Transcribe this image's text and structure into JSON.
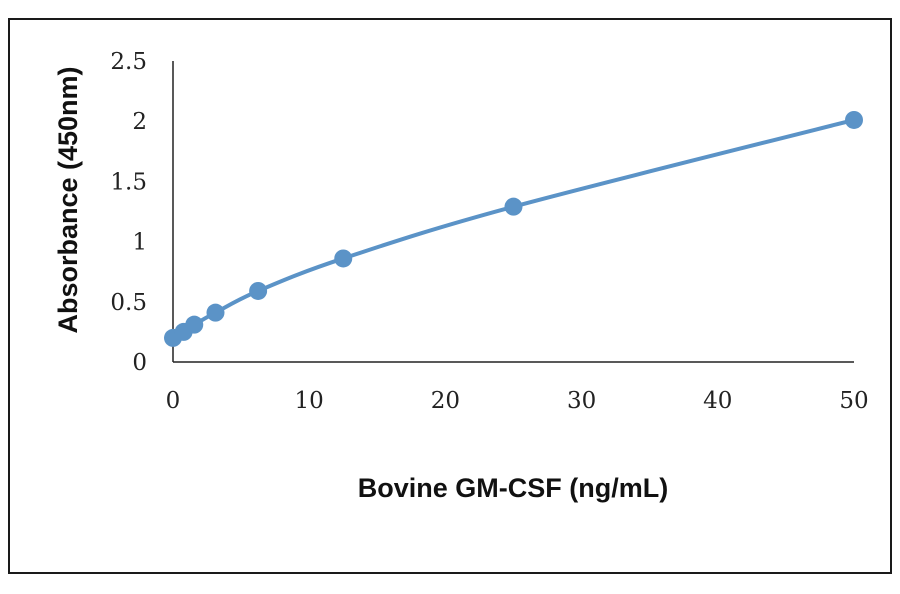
{
  "chart_data": {
    "type": "line",
    "xlabel": "Bovine GM-CSF (ng/mL)",
    "ylabel": "Absorbance (450nm)",
    "xlim": [
      0,
      50
    ],
    "ylim": [
      0,
      2.5
    ],
    "xticks": [
      0,
      10,
      20,
      30,
      40,
      50
    ],
    "yticks": [
      0,
      0.5,
      1,
      1.5,
      2,
      2.5
    ],
    "grid": false,
    "series": [
      {
        "color": "#5b93c7",
        "x": [
          0,
          0.78,
          1.56,
          3.12,
          6.25,
          12.5,
          25,
          50
        ],
        "y": [
          0.2,
          0.25,
          0.31,
          0.41,
          0.59,
          0.86,
          1.29,
          2.01
        ],
        "smooth": true,
        "markers": true
      }
    ]
  }
}
